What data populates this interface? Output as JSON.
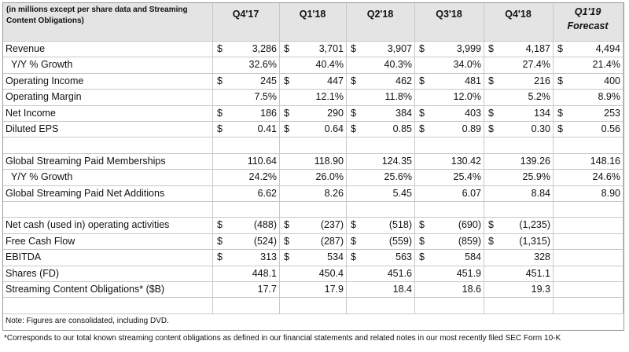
{
  "header": {
    "label": "(in millions except per share data and Streaming Content Obligations)",
    "columns": [
      "Q4'17",
      "Q1'18",
      "Q2'18",
      "Q3'18",
      "Q4'18"
    ],
    "forecast": {
      "label": "Q1'19",
      "note": "Forecast"
    }
  },
  "sections": [
    [
      {
        "label": "Revenue",
        "cells": [
          {
            "currency": "$",
            "value": "3,286"
          },
          {
            "currency": "$",
            "value": "3,701"
          },
          {
            "currency": "$",
            "value": "3,907"
          },
          {
            "currency": "$",
            "value": "3,999"
          },
          {
            "currency": "$",
            "value": "4,187"
          },
          {
            "currency": "$",
            "value": "4,494"
          }
        ]
      },
      {
        "label": "Y/Y % Growth",
        "indent": true,
        "cells": [
          {
            "value": "32.6%"
          },
          {
            "value": "40.4%"
          },
          {
            "value": "40.3%"
          },
          {
            "value": "34.0%"
          },
          {
            "value": "27.4%"
          },
          {
            "value": "21.4%"
          }
        ]
      },
      {
        "label": "Operating Income",
        "cells": [
          {
            "currency": "$",
            "value": "245"
          },
          {
            "currency": "$",
            "value": "447"
          },
          {
            "currency": "$",
            "value": "462"
          },
          {
            "currency": "$",
            "value": "481"
          },
          {
            "currency": "$",
            "value": "216"
          },
          {
            "currency": "$",
            "value": "400"
          }
        ]
      },
      {
        "label": "Operating Margin",
        "cells": [
          {
            "value": "7.5%"
          },
          {
            "value": "12.1%"
          },
          {
            "value": "11.8%"
          },
          {
            "value": "12.0%"
          },
          {
            "value": "5.2%"
          },
          {
            "value": "8.9%"
          }
        ]
      },
      {
        "label": "Net Income",
        "cells": [
          {
            "currency": "$",
            "value": "186"
          },
          {
            "currency": "$",
            "value": "290"
          },
          {
            "currency": "$",
            "value": "384"
          },
          {
            "currency": "$",
            "value": "403"
          },
          {
            "currency": "$",
            "value": "134"
          },
          {
            "currency": "$",
            "value": "253"
          }
        ]
      },
      {
        "label": "Diluted EPS",
        "cells": [
          {
            "currency": "$",
            "value": "0.41"
          },
          {
            "currency": "$",
            "value": "0.64"
          },
          {
            "currency": "$",
            "value": "0.85"
          },
          {
            "currency": "$",
            "value": "0.89"
          },
          {
            "currency": "$",
            "value": "0.30"
          },
          {
            "currency": "$",
            "value": "0.56"
          }
        ]
      }
    ],
    [
      {
        "label": "Global Streaming Paid Memberships",
        "cells": [
          {
            "value": "110.64"
          },
          {
            "value": "118.90"
          },
          {
            "value": "124.35"
          },
          {
            "value": "130.42"
          },
          {
            "value": "139.26"
          },
          {
            "value": "148.16"
          }
        ]
      },
      {
        "label": "Y/Y % Growth",
        "indent": true,
        "cells": [
          {
            "value": "24.2%"
          },
          {
            "value": "26.0%"
          },
          {
            "value": "25.6%"
          },
          {
            "value": "25.4%"
          },
          {
            "value": "25.9%"
          },
          {
            "value": "24.6%"
          }
        ]
      },
      {
        "label": "Global Streaming Paid Net Additions",
        "cells": [
          {
            "value": "6.62"
          },
          {
            "value": "8.26"
          },
          {
            "value": "5.45"
          },
          {
            "value": "6.07"
          },
          {
            "value": "8.84"
          },
          {
            "value": "8.90"
          }
        ]
      }
    ],
    [
      {
        "label": "Net cash (used in) operating activities",
        "cells": [
          {
            "currency": "$",
            "value": "(488)"
          },
          {
            "currency": "$",
            "value": "(237)"
          },
          {
            "currency": "$",
            "value": "(518)"
          },
          {
            "currency": "$",
            "value": "(690)"
          },
          {
            "currency": "$",
            "value": "(1,235)"
          }
        ]
      },
      {
        "label": "Free Cash Flow",
        "cells": [
          {
            "currency": "$",
            "value": "(524)"
          },
          {
            "currency": "$",
            "value": "(287)"
          },
          {
            "currency": "$",
            "value": "(559)"
          },
          {
            "currency": "$",
            "value": "(859)"
          },
          {
            "currency": "$",
            "value": "(1,315)"
          }
        ]
      },
      {
        "label": "EBITDA",
        "cells": [
          {
            "currency": "$",
            "value": "313"
          },
          {
            "currency": "$",
            "value": "534"
          },
          {
            "currency": "$",
            "value": "563"
          },
          {
            "currency": "$",
            "value": "584"
          },
          {
            "value": "328"
          }
        ]
      },
      {
        "label": "Shares (FD)",
        "cells": [
          {
            "value": "448.1"
          },
          {
            "value": "450.4"
          },
          {
            "value": "451.6"
          },
          {
            "value": "451.9"
          },
          {
            "value": "451.1"
          }
        ]
      },
      {
        "label": "Streaming Content Obligations* ($B)",
        "cells": [
          {
            "value": "17.7"
          },
          {
            "value": "17.9"
          },
          {
            "value": "18.4"
          },
          {
            "value": "18.6"
          },
          {
            "value": "19.3"
          }
        ]
      }
    ]
  ],
  "note": "Note: Figures are consolidated, including DVD.",
  "footnote": "*Corresponds to our total known streaming content obligations as defined in our financial statements and related notes in our most recently filed SEC Form 10-K"
}
